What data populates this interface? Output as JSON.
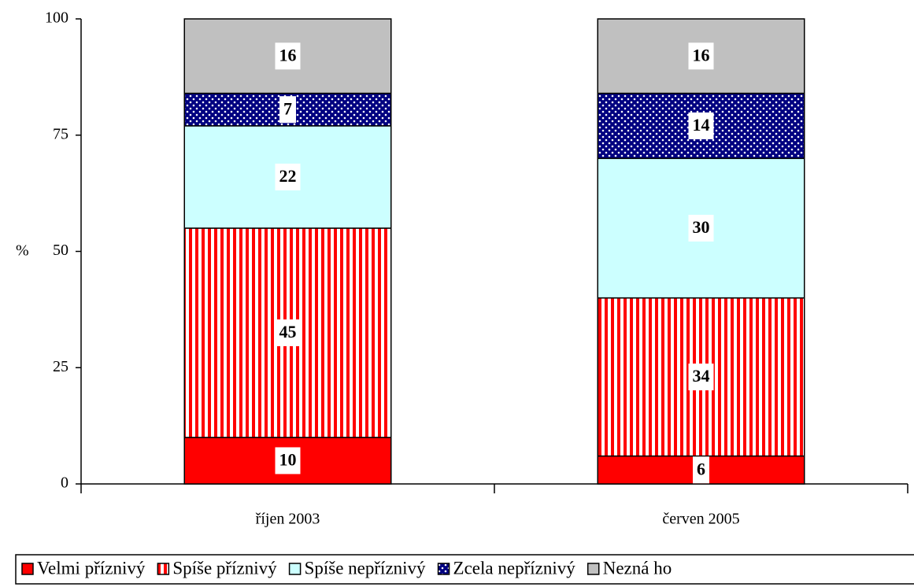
{
  "chart_data": {
    "type": "stacked_bar",
    "y_axis_label": "%",
    "categories": [
      "říjen 2003",
      "červen 2005"
    ],
    "series": [
      {
        "name": "Velmi příznivý",
        "color": "#ff0000",
        "pattern": "solid",
        "values": [
          10,
          6
        ]
      },
      {
        "name": "Spíše příznivý",
        "color": "#ff0000",
        "pattern": "vertical-stripes",
        "values": [
          45,
          34
        ]
      },
      {
        "name": "Spíše nepříznivý",
        "color": "#ccffff",
        "pattern": "solid",
        "values": [
          22,
          30
        ]
      },
      {
        "name": "Zcela nepříznivý",
        "color": "#000080",
        "pattern": "dots",
        "values": [
          7,
          14
        ]
      },
      {
        "name": "Nezná ho",
        "color": "#c0c0c0",
        "pattern": "solid",
        "values": [
          16,
          16
        ]
      }
    ],
    "ylim": [
      0,
      100
    ],
    "yticks": [
      0,
      25,
      50,
      75,
      100
    ],
    "grid": false,
    "legend": "bottom"
  }
}
